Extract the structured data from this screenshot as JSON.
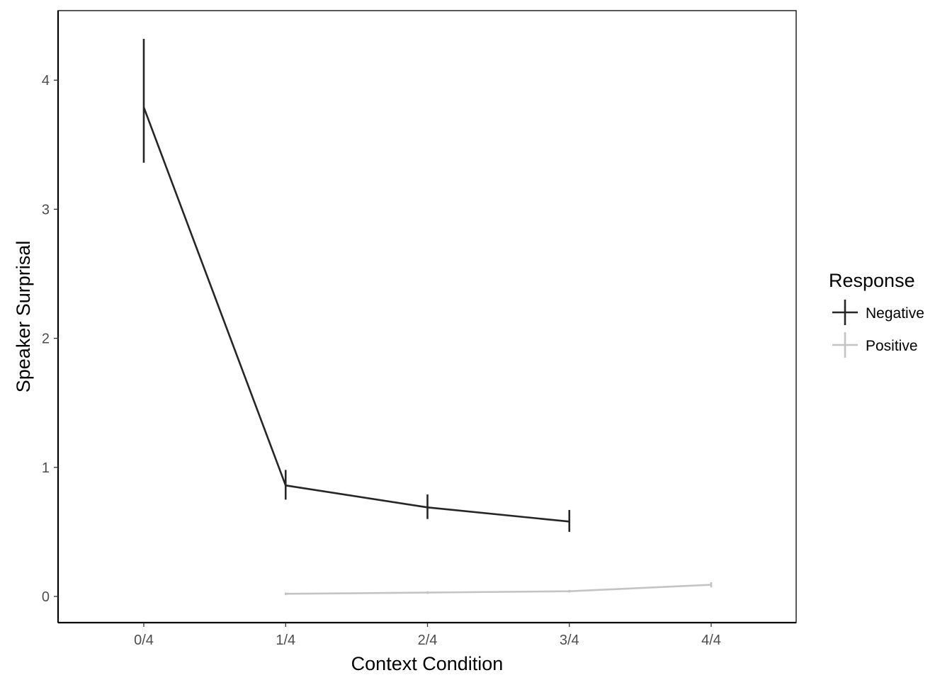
{
  "chart_data": {
    "type": "line",
    "xlabel": "Context Condition",
    "ylabel": "Speaker Surprisal",
    "categories": [
      "0/4",
      "1/4",
      "2/4",
      "3/4",
      "4/4"
    ],
    "ylim": [
      -0.2,
      4.55
    ],
    "yticks": [
      0,
      1,
      2,
      3,
      4
    ],
    "grid": false,
    "legend": {
      "title": "Response",
      "position": "right"
    },
    "series": [
      {
        "name": "Negative",
        "color": "#262626",
        "points": [
          {
            "x": "0/4",
            "y": 3.79,
            "ymin": 3.36,
            "ymax": 4.32
          },
          {
            "x": "1/4",
            "y": 0.86,
            "ymin": 0.75,
            "ymax": 0.98
          },
          {
            "x": "2/4",
            "y": 0.69,
            "ymin": 0.6,
            "ymax": 0.79
          },
          {
            "x": "3/4",
            "y": 0.58,
            "ymin": 0.5,
            "ymax": 0.67
          }
        ]
      },
      {
        "name": "Positive",
        "color": "#c4c4c4",
        "points": [
          {
            "x": "1/4",
            "y": 0.02,
            "ymin": 0.01,
            "ymax": 0.03
          },
          {
            "x": "2/4",
            "y": 0.03,
            "ymin": 0.02,
            "ymax": 0.04
          },
          {
            "x": "3/4",
            "y": 0.04,
            "ymin": 0.03,
            "ymax": 0.05
          },
          {
            "x": "4/4",
            "y": 0.09,
            "ymin": 0.07,
            "ymax": 0.11
          }
        ]
      }
    ]
  }
}
